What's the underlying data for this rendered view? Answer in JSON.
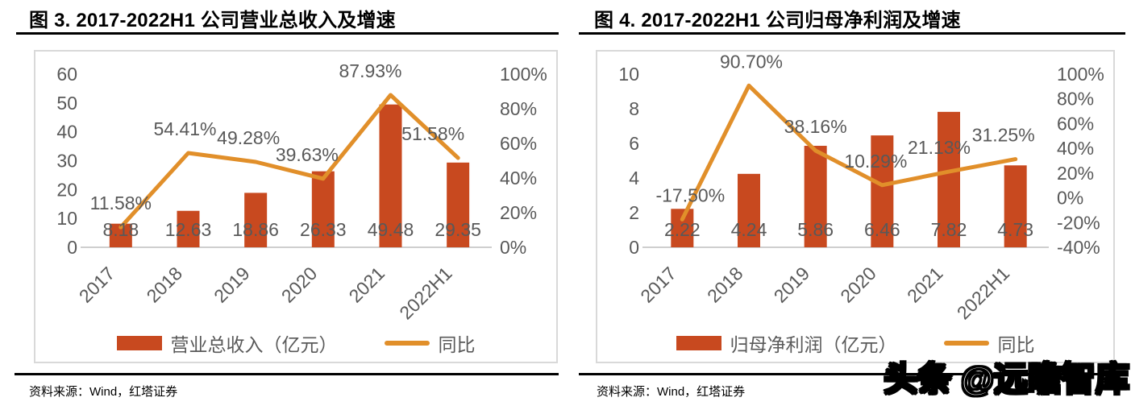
{
  "style": {
    "bar_color": "#C8491F",
    "line_color": "#E18F2A",
    "axis_text_color": "#595959",
    "axis_line_color": "#BFBFBF",
    "frame_border_color": "#D9D9D9",
    "title_color": "#000000"
  },
  "watermark": {
    "text": "头条 @远瞻智库"
  },
  "chart_data": [
    {
      "type": "bar",
      "title": "图 3. 2017-2022H1 公司营业总收入及增速",
      "source": "资料来源：Wind，红塔证券",
      "categories": [
        "2017",
        "2018",
        "2019",
        "2020",
        "2021",
        "2022H1"
      ],
      "series": [
        {
          "name": "营业总收入（亿元）",
          "kind": "bar",
          "axis": "left",
          "values": [
            8.18,
            12.63,
            18.86,
            26.33,
            49.48,
            29.35
          ],
          "labels": [
            "8.18",
            "12.63",
            "18.86",
            "26.33",
            "49.48",
            "29.35"
          ],
          "color": "#C8491F"
        },
        {
          "name": "同比",
          "kind": "line",
          "axis": "right",
          "values": [
            11.58,
            54.41,
            49.28,
            39.63,
            87.93,
            51.58
          ],
          "labels": [
            "11.58%",
            "54.41%",
            "49.28%",
            "39.63%",
            "87.93%",
            "51.58%"
          ],
          "label_dx": [
            0,
            -4,
            -9,
            -20,
            -25,
            -31
          ],
          "color": "#E18F2A"
        }
      ],
      "left_axis": {
        "min": 0,
        "max": 60,
        "ticks": [
          0,
          10,
          20,
          30,
          40,
          50,
          60
        ],
        "tick_labels": [
          "0",
          "10",
          "20",
          "30",
          "40",
          "50",
          "60"
        ]
      },
      "right_axis": {
        "min": 0,
        "max": 100,
        "ticks": [
          0,
          20,
          40,
          60,
          80,
          100
        ],
        "tick_labels": [
          "0%",
          "20%",
          "40%",
          "60%",
          "80%",
          "100%"
        ]
      },
      "grid": false,
      "legend_position": "bottom"
    },
    {
      "type": "bar",
      "title": "图 4. 2017-2022H1 公司归母净利润及增速",
      "source": "资料来源：Wind，红塔证券",
      "categories": [
        "2017",
        "2018",
        "2019",
        "2020",
        "2021",
        "2022H1"
      ],
      "series": [
        {
          "name": "归母净利润（亿元）",
          "kind": "bar",
          "axis": "left",
          "values": [
            2.22,
            4.24,
            5.86,
            6.46,
            7.82,
            4.73
          ],
          "labels": [
            "2.22",
            "4.24",
            "5.86",
            "6.46",
            "7.82",
            "4.73"
          ],
          "color": "#C8491F"
        },
        {
          "name": "同比",
          "kind": "line",
          "axis": "right",
          "values": [
            -17.5,
            90.7,
            38.16,
            10.29,
            21.13,
            31.25
          ],
          "labels": [
            "-17.50%",
            "90.70%",
            "38.16%",
            "10.29%",
            "21.13%",
            "31.25%"
          ],
          "label_dx": [
            10,
            3,
            0,
            -8,
            -12,
            -15
          ],
          "color": "#E18F2A"
        }
      ],
      "left_axis": {
        "min": 0,
        "max": 10,
        "ticks": [
          0,
          2,
          4,
          6,
          8,
          10
        ],
        "tick_labels": [
          "0",
          "2",
          "4",
          "6",
          "8",
          "10"
        ]
      },
      "right_axis": {
        "min": -40,
        "max": 100,
        "ticks": [
          -40,
          -20,
          0,
          20,
          40,
          60,
          80,
          100
        ],
        "tick_labels": [
          "-40%",
          "-20%",
          "0%",
          "20%",
          "40%",
          "60%",
          "80%",
          "100%"
        ]
      },
      "grid": false,
      "legend_position": "bottom"
    }
  ]
}
